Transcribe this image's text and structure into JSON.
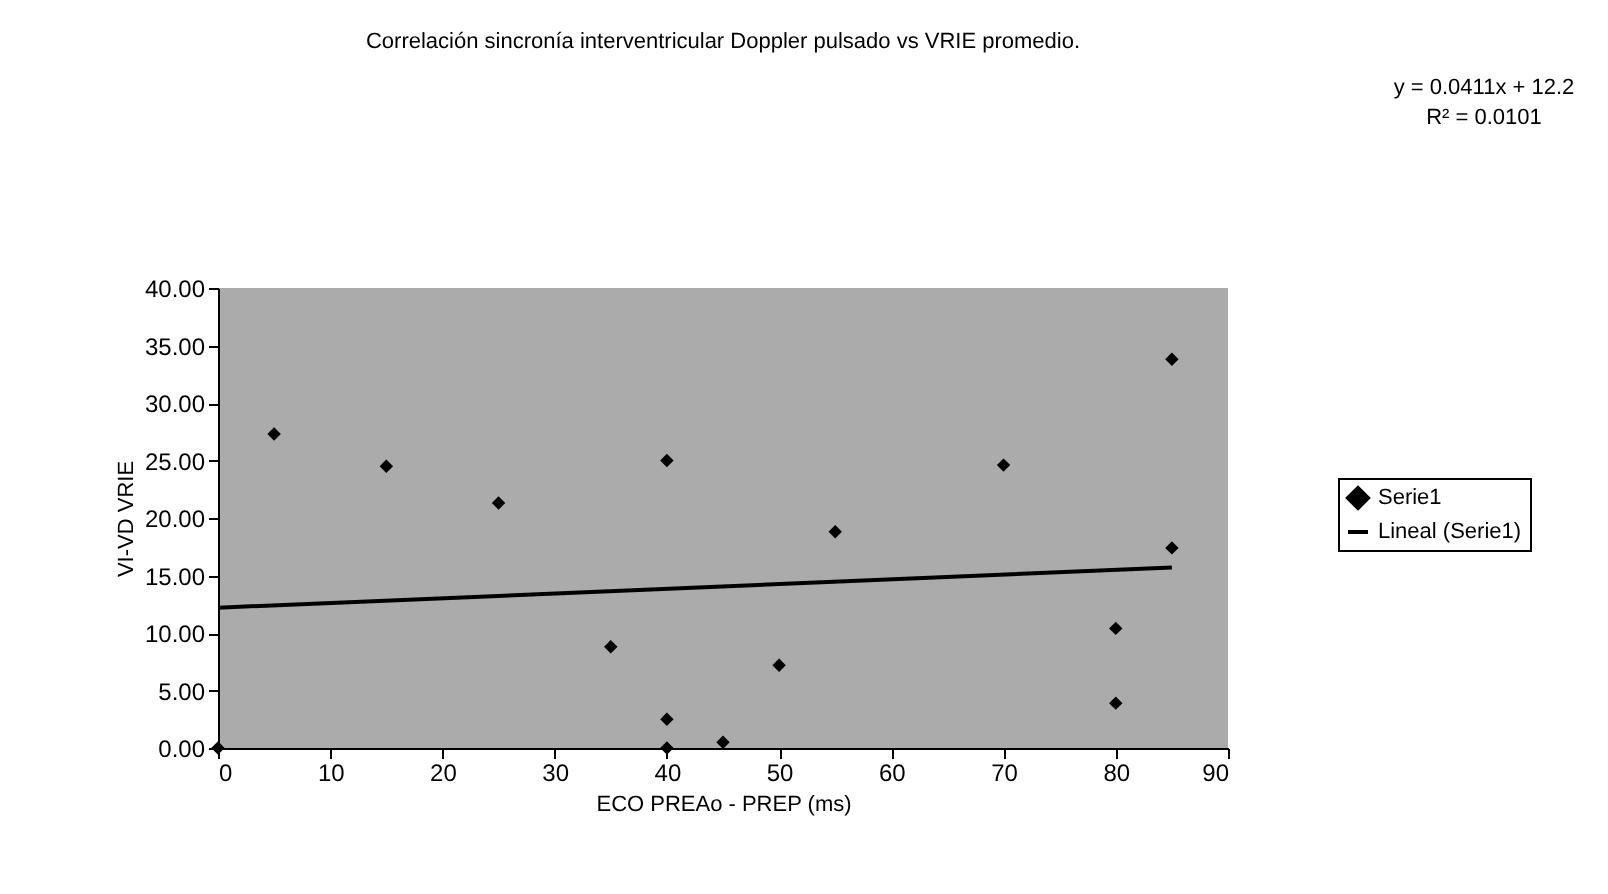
{
  "chart_data": {
    "type": "scatter",
    "title": "Correlación sincronía interventricular Doppler pulsado  vs VRIE promedio.",
    "xlabel": "ECO PREAo - PREP (ms)",
    "ylabel": "VI-VD VRIE",
    "series": [
      {
        "name": "Serie1",
        "color": "#000000",
        "marker": "diamond",
        "x": [
          0,
          5,
          15,
          25,
          35,
          40,
          40,
          40,
          45,
          50,
          55,
          70,
          80,
          80,
          85,
          85
        ],
        "values": [
          0,
          27.3,
          24.5,
          21.3,
          8.8,
          25,
          2.5,
          0,
          0.5,
          7.2,
          18.8,
          24.6,
          10.4,
          3.9,
          33.8,
          17.4
        ]
      },
      {
        "name": "Lineal (Serie1)",
        "type": "line",
        "color": "#000000",
        "line_style": "solid",
        "x": [
          0,
          85
        ],
        "values": [
          12.2,
          15.7
        ]
      }
    ],
    "xlim": [
      0,
      90
    ],
    "xticks": [
      0,
      10,
      20,
      30,
      40,
      50,
      60,
      70,
      80,
      90
    ],
    "ylim": [
      0,
      40
    ],
    "yticks": [
      {
        "value": 0,
        "label": "0.00"
      },
      {
        "value": 5,
        "label": "5.00"
      },
      {
        "value": 10,
        "label": "10.00"
      },
      {
        "value": 15,
        "label": "15.00"
      },
      {
        "value": 20,
        "label": "20.00"
      },
      {
        "value": 25,
        "label": "25.00"
      },
      {
        "value": 30,
        "label": "30.00"
      },
      {
        "value": 35,
        "label": "35.00"
      },
      {
        "value": 40,
        "label": "40.00"
      }
    ],
    "grid": false,
    "legend": "right",
    "annotations": [
      "y = 0.0411x + 12.2",
      "R² = 0.0101"
    ]
  }
}
